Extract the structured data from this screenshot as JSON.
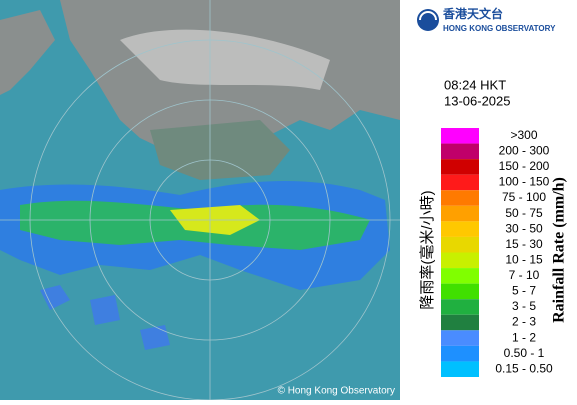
{
  "header": {
    "logo_chinese": "香港天文台",
    "logo_english": "HONG KONG OBSERVATORY"
  },
  "time": "08:24 HKT",
  "date": "13-06-2025",
  "legend": {
    "title_chinese": "降雨率(毫米/小時)",
    "title_english": "Rainfall Rate (mm/h)",
    "items": [
      {
        "label": ">300",
        "color": "#ff00ff"
      },
      {
        "label": "200 - 300",
        "color": "#c0006a"
      },
      {
        "label": "150 - 200",
        "color": "#d00000"
      },
      {
        "label": "100 - 150",
        "color": "#ff1a1a"
      },
      {
        "label": "75 - 100",
        "color": "#ff7a00"
      },
      {
        "label": "50 - 75",
        "color": "#ffa000"
      },
      {
        "label": "30 - 50",
        "color": "#ffc800"
      },
      {
        "label": "15 - 30",
        "color": "#e8d800"
      },
      {
        "label": "10 - 15",
        "color": "#c8f000"
      },
      {
        "label": "7 - 10",
        "color": "#80ff00"
      },
      {
        "label": "5 - 7",
        "color": "#40e000"
      },
      {
        "label": "3 - 5",
        "color": "#20b040"
      },
      {
        "label": "2 - 3",
        "color": "#208040"
      },
      {
        "label": "1 - 2",
        "color": "#4a8cff"
      },
      {
        "label": "0.50 - 1",
        "color": "#1e90ff"
      },
      {
        "label": "0.15 - 0.50",
        "color": "#00c0ff"
      }
    ]
  },
  "copyright": "© Hong Kong Observatory"
}
